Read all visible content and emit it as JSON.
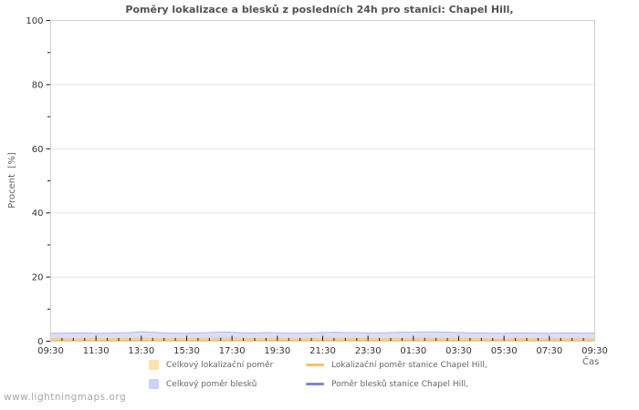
{
  "page": {
    "watermark": "www.lightningmaps.org",
    "background": "#ffffff"
  },
  "chart_data": {
    "type": "area",
    "title": "Poměry lokalizace a blesků z posledních 24h pro stanici: Chapel Hill,",
    "xlabel": "Čas",
    "ylabel": "Procent  [%]",
    "ylim": [
      0,
      100
    ],
    "x_range_hours": [
      0,
      24
    ],
    "grid": true,
    "legend_position": "bottom",
    "colors": {
      "grid_line": "#e3e3e3",
      "plot_border": "#cfcfcf",
      "tick_mark": "#1a1a1a",
      "tick_label": "#333333",
      "title_text": "#525252",
      "axis_name_text": "#666666",
      "watermark_text": "#a6a6a6"
    },
    "xticks": {
      "hours": [
        0,
        2,
        4,
        6,
        8,
        10,
        12,
        14,
        16,
        18,
        20,
        22,
        24
      ],
      "labels": [
        "09:30",
        "11:30",
        "13:30",
        "15:30",
        "17:30",
        "19:30",
        "21:30",
        "23:30",
        "01:30",
        "03:30",
        "05:30",
        "07:30",
        "09:30"
      ]
    },
    "x_minor_step_hours": 0.5,
    "yticks": [
      0,
      20,
      40,
      60,
      80,
      100
    ],
    "y_minor_ticks": [
      10,
      30,
      50,
      70,
      90
    ],
    "x_hours": [
      0,
      0.5,
      1,
      1.5,
      2,
      2.5,
      3,
      3.5,
      4,
      4.5,
      5,
      5.5,
      6,
      6.5,
      7,
      7.5,
      8,
      8.5,
      9,
      9.5,
      10,
      10.5,
      11,
      11.5,
      12,
      12.5,
      13,
      13.5,
      14,
      14.5,
      15,
      15.5,
      16,
      16.5,
      17,
      17.5,
      18,
      18.5,
      19,
      19.5,
      20,
      20.5,
      21,
      21.5,
      22,
      22.5,
      23,
      23.5,
      24
    ],
    "series": [
      {
        "name": "Celkový lokalizační poměr",
        "type": "area",
        "swatch": "#fbe3ae",
        "fill_rgba": "rgba(240,195,110,0.38)",
        "line_color": "#edcc92",
        "values": [
          0.8,
          0.8,
          0.7,
          0.8,
          0.8,
          0.8,
          0.9,
          0.9,
          1.0,
          0.9,
          0.8,
          0.8,
          0.8,
          0.9,
          1.0,
          1.1,
          1.0,
          0.9,
          0.9,
          0.8,
          0.8,
          0.8,
          0.8,
          0.9,
          0.9,
          1.0,
          0.9,
          0.9,
          0.8,
          0.8,
          0.9,
          0.9,
          1.0,
          1.0,
          0.9,
          0.9,
          0.8,
          0.8,
          0.8,
          0.7,
          0.7,
          0.8,
          0.8,
          0.8,
          0.7,
          0.8,
          0.8,
          0.7,
          0.8
        ]
      },
      {
        "name": "Celkový poměr blesků",
        "type": "area",
        "swatch": "#cdd1f3",
        "fill_rgba": "rgba(175,181,235,0.45)",
        "line_color": "#b3b7ea",
        "values": [
          2.5,
          2.5,
          2.6,
          2.6,
          2.5,
          2.5,
          2.6,
          2.7,
          3.0,
          2.8,
          2.6,
          2.5,
          2.5,
          2.6,
          2.7,
          2.9,
          2.8,
          2.6,
          2.6,
          2.7,
          2.6,
          2.5,
          2.5,
          2.6,
          2.7,
          2.8,
          2.7,
          2.7,
          2.6,
          2.6,
          2.7,
          2.8,
          2.8,
          2.9,
          2.9,
          2.8,
          2.7,
          2.6,
          2.6,
          2.5,
          2.5,
          2.6,
          2.6,
          2.5,
          2.5,
          2.6,
          2.6,
          2.5,
          2.6
        ]
      },
      {
        "name": "Lokalizační poměr stanice Chapel Hill,",
        "type": "line",
        "swatch": "#f3c46c",
        "line_color": "#f3c46c",
        "values": [
          0.3,
          0.3,
          0.3,
          0.3,
          0.3,
          0.3,
          0.3,
          0.3,
          0.3,
          0.3,
          0.3,
          0.3,
          0.3,
          0.3,
          0.3,
          0.3,
          0.3,
          0.3,
          0.3,
          0.3,
          0.3,
          0.3,
          0.3,
          0.3,
          0.3,
          0.3,
          0.3,
          0.3,
          0.3,
          0.3,
          0.3,
          0.3,
          0.3,
          0.3,
          0.3,
          0.3,
          0.3,
          0.3,
          0.3,
          0.3,
          0.3,
          0.3,
          0.3,
          0.3,
          0.3,
          0.3,
          0.3,
          0.3,
          0.3
        ]
      },
      {
        "name": "Poměr blesků stanice Chapel Hill,",
        "type": "line",
        "swatch": "#7e81dc",
        "line_color": "#7e81dc",
        "values": [
          0.2,
          0.2,
          0.2,
          0.2,
          0.2,
          0.2,
          0.2,
          0.2,
          0.2,
          0.2,
          0.2,
          0.2,
          0.2,
          0.2,
          0.2,
          0.2,
          0.2,
          0.2,
          0.2,
          0.2,
          0.2,
          0.2,
          0.2,
          0.2,
          0.2,
          0.2,
          0.2,
          0.2,
          0.2,
          0.2,
          0.2,
          0.2,
          0.2,
          0.2,
          0.2,
          0.2,
          0.2,
          0.2,
          0.2,
          0.2,
          0.2,
          0.2,
          0.2,
          0.2,
          0.2,
          0.2,
          0.2,
          0.2,
          0.2
        ]
      }
    ]
  }
}
